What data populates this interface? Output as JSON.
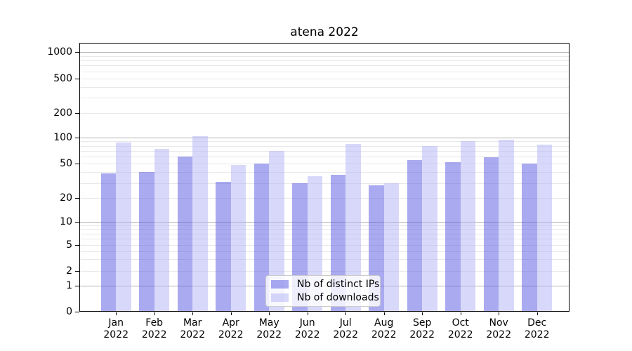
{
  "chart_data": {
    "type": "bar",
    "title": "atena 2022",
    "categories": [
      "Jan 2022",
      "Feb 2022",
      "Mar 2022",
      "Apr 2022",
      "May 2022",
      "Jun 2022",
      "Jul 2022",
      "Aug 2022",
      "Sep 2022",
      "Oct 2022",
      "Nov 2022",
      "Dec 2022"
    ],
    "series": [
      {
        "name": "Nb of distinct IPs",
        "color": "#5555e1",
        "values": [
          39,
          40,
          61,
          31,
          50,
          30,
          37,
          28,
          55,
          52,
          59,
          50
        ]
      },
      {
        "name": "Nb of downloads",
        "color": "#b1b1f5",
        "values": [
          87,
          74,
          103,
          48,
          70,
          36,
          85,
          30,
          79,
          91,
          94,
          82
        ]
      }
    ],
    "bar_alpha": 0.5,
    "yscale": "symlog",
    "yticks": [
      0,
      1,
      2,
      5,
      10,
      20,
      50,
      100,
      200,
      500,
      1000
    ],
    "ylim": [
      0,
      1250
    ],
    "xlabel": "",
    "ylabel": "",
    "grid": {
      "major_values": [
        1,
        10,
        100,
        1000
      ],
      "major_color": "#b0b0b0",
      "minor_color": "#e8e8e8"
    },
    "legend": {
      "position": "lower center"
    }
  }
}
